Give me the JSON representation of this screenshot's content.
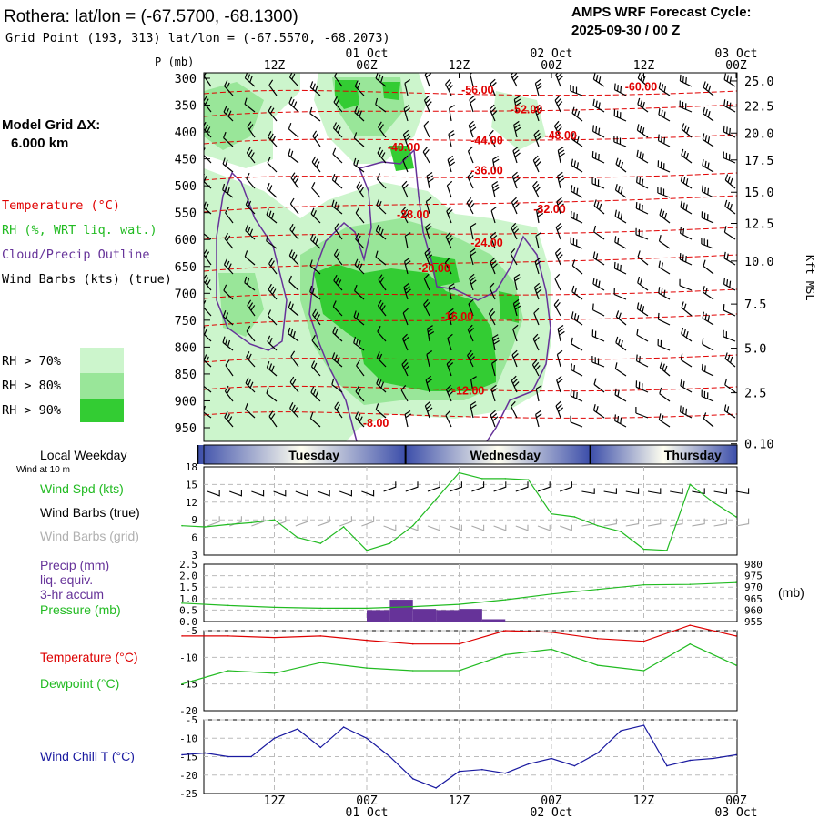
{
  "header": {
    "title": "Rothera:  lat/lon = (-67.5700, -68.1300)",
    "grid_point": "Grid Point (193, 313) lat/lon = (-67.5570, -68.2073)",
    "cycle_line1": "AMPS WRF Forecast Cycle:",
    "cycle_line2": "2025-09-30 / 00  Z"
  },
  "legend": {
    "model_grid": "Model Grid ΔX:",
    "model_grid_value": "6.000 km",
    "temperature": "Temperature (°C)",
    "rh": "RH (%, WRT liq. wat.)",
    "cloud": "Cloud/Precip Outline",
    "wind_barbs": "Wind Barbs (kts) (true)",
    "rh70": "RH > 70%",
    "rh80": "RH > 80%",
    "rh90": "RH > 90%",
    "colors": {
      "rh70": "#ccf5cc",
      "rh80": "#99e699",
      "rh90": "#33cc33",
      "temp": "#ff0000",
      "cloud": "#663399"
    }
  },
  "time_axis": {
    "top_labels": [
      {
        "t": 1,
        "line1": "",
        "line2": "12Z"
      },
      {
        "t": 2,
        "line1": "01 Oct",
        "line2": "00Z"
      },
      {
        "t": 3,
        "line1": "",
        "line2": "12Z"
      },
      {
        "t": 4,
        "line1": "02 Oct",
        "line2": "00Z"
      },
      {
        "t": 5,
        "line1": "",
        "line2": "12Z"
      },
      {
        "t": 6,
        "line1": "03 Oct",
        "line2": "00Z"
      }
    ],
    "bottom_labels": [
      {
        "t": 1,
        "line1": "12Z",
        "line2": ""
      },
      {
        "t": 2,
        "line1": "00Z",
        "line2": "01 Oct"
      },
      {
        "t": 3,
        "line1": "12Z",
        "line2": ""
      },
      {
        "t": 4,
        "line1": "00Z",
        "line2": "02 Oct"
      },
      {
        "t": 5,
        "line1": "12Z",
        "line2": ""
      },
      {
        "t": 6,
        "line1": "00Z",
        "line2": "03 Oct"
      }
    ]
  },
  "weekday": {
    "label": "Local Weekday",
    "wind_note": "Wind at 10 m",
    "days": [
      "Tuesday",
      "Wednesday",
      "Thursday"
    ],
    "day_centers_t": [
      1.43,
      3.5,
      5.53
    ],
    "day_boundaries_t": [
      0.17,
      2.42,
      4.42
    ]
  },
  "chart_data": [
    {
      "type": "contour-profile",
      "name": "cross-section",
      "y_axis": {
        "label": "P (mb)",
        "ticks": [
          300,
          350,
          400,
          450,
          500,
          550,
          600,
          650,
          700,
          750,
          800,
          850,
          900,
          950
        ]
      },
      "right_axis": {
        "label": "Kft MSL",
        "ticks": [
          "25.0",
          "22.5",
          "20.0",
          "17.5",
          "15.0",
          "12.5",
          "10.0",
          "7.5",
          "5.0",
          "2.5",
          "0.10"
        ],
        "tick_p": [
          305,
          352,
          402,
          452,
          512,
          570,
          640,
          720,
          802,
          885,
          980
        ]
      },
      "temperature_labels": [
        {
          "text": "-60.00",
          "t": 4.97,
          "p": 314
        },
        {
          "text": "-56.00",
          "t": 3.2,
          "p": 320
        },
        {
          "text": "-52.00",
          "t": 3.73,
          "p": 357
        },
        {
          "text": "-48.00",
          "t": 4.1,
          "p": 405
        },
        {
          "text": "-44.00",
          "t": 3.3,
          "p": 414
        },
        {
          "text": "-40.00",
          "t": 2.4,
          "p": 427
        },
        {
          "text": "-36.00",
          "t": 3.3,
          "p": 470
        },
        {
          "text": "-32.00",
          "t": 3.98,
          "p": 542
        },
        {
          "text": "-28.00",
          "t": 2.5,
          "p": 552
        },
        {
          "text": "-24.00",
          "t": 3.3,
          "p": 605
        },
        {
          "text": "-20.00",
          "t": 2.73,
          "p": 652
        },
        {
          "text": "-16.00",
          "t": 2.98,
          "p": 742
        },
        {
          "text": "-12.00",
          "t": 3.1,
          "p": 880
        },
        {
          "text": "-8.00",
          "t": 2.1,
          "p": 940
        }
      ]
    },
    {
      "type": "line",
      "name": "wind",
      "labels": {
        "speed": "Wind Spd (kts)",
        "true": "Wind Barbs (true)",
        "grid": "Wind Barbs (grid)"
      },
      "ylim": [
        3,
        18
      ],
      "yticks": [
        3,
        6,
        9,
        12,
        15,
        18
      ],
      "x": [
        0,
        0.25,
        0.5,
        0.75,
        1,
        1.25,
        1.5,
        1.75,
        2,
        2.25,
        2.5,
        2.75,
        3,
        3.25,
        3.5,
        3.75,
        4,
        4.25,
        4.5,
        4.75,
        5,
        5.25,
        5.5,
        5.75,
        6
      ],
      "series": [
        {
          "values": [
            8,
            7.8,
            8.2,
            8.5,
            9,
            6,
            5,
            7.8,
            3.8,
            5,
            8,
            12.5,
            17,
            16,
            16,
            15.8,
            10,
            9.5,
            8,
            7,
            4,
            3.8,
            15,
            12,
            9.5
          ]
        }
      ]
    },
    {
      "type": "bar+line",
      "name": "precip-pressure",
      "labels": {
        "precip": "Precip (mm)",
        "liq": "liq. equiv.",
        "accum": "3-hr accum",
        "pressure": "Pressure (mb)",
        "unit": "(mb)"
      },
      "ylim_left": [
        0,
        2.5
      ],
      "yticks_left": [
        "0.0",
        "0.5",
        "1.0",
        "1.5",
        "2.0",
        "2.5"
      ],
      "ylim_right": [
        955,
        980
      ],
      "yticks_right": [
        955,
        960,
        965,
        970,
        975,
        980
      ],
      "precip_bars": [
        {
          "t0": 2.0,
          "t1": 2.25,
          "v": 0.5
        },
        {
          "t0": 2.25,
          "t1": 2.5,
          "v": 0.95
        },
        {
          "t0": 2.5,
          "t1": 2.75,
          "v": 0.55
        },
        {
          "t0": 2.75,
          "t1": 3.0,
          "v": 0.5
        },
        {
          "t0": 3.0,
          "t1": 3.25,
          "v": 0.55
        },
        {
          "t0": 3.25,
          "t1": 3.5,
          "v": 0.1
        }
      ],
      "pressure_x": [
        0,
        0.5,
        1,
        1.5,
        2,
        2.5,
        3,
        3.5,
        4,
        4.5,
        5,
        5.5,
        6
      ],
      "pressure": [
        963,
        962,
        961.2,
        960.8,
        960.8,
        961.5,
        962.5,
        964.5,
        967,
        969,
        971,
        971.2,
        972
      ]
    },
    {
      "type": "line",
      "name": "temp-dewpoint",
      "labels": {
        "temp": "Temperature (°C)",
        "dew": "Dewpoint (°C)"
      },
      "ylim": [
        -20,
        -5
      ],
      "yticks": [
        -20,
        -15,
        -10,
        -5
      ],
      "x": [
        0,
        0.5,
        1,
        1.5,
        2,
        2.5,
        3,
        3.5,
        4,
        4.5,
        5,
        5.5,
        6
      ],
      "series": [
        {
          "values": [
            -6,
            -6,
            -6.3,
            -6,
            -6.8,
            -7.5,
            -7.5,
            -5,
            -5.3,
            -6.5,
            -7,
            -4,
            -6
          ]
        },
        {
          "values": [
            -15,
            -12.5,
            -13,
            -11,
            -12,
            -12.5,
            -12.5,
            -9.5,
            -8.5,
            -11.5,
            -12.5,
            -7.5,
            -11.5
          ]
        }
      ]
    },
    {
      "type": "line",
      "name": "wind-chill",
      "labels": {
        "wc": "Wind Chill T (°C)"
      },
      "ylim": [
        -25,
        -5
      ],
      "yticks": [
        -25,
        -20,
        -15,
        -10,
        -5
      ],
      "x": [
        0,
        0.25,
        0.5,
        0.75,
        1,
        1.25,
        1.5,
        1.75,
        2,
        2.25,
        2.5,
        2.75,
        3,
        3.25,
        3.5,
        3.75,
        4,
        4.25,
        4.5,
        4.75,
        5,
        5.25,
        5.5,
        5.75,
        6
      ],
      "series": [
        {
          "values": [
            -14.5,
            -14,
            -15,
            -15,
            -10,
            -7.5,
            -12.5,
            -7,
            -10,
            -15,
            -21,
            -23.5,
            -19,
            -18.5,
            -19.5,
            -17,
            -15.5,
            -17.5,
            -14,
            -8,
            -6.5,
            -17.5,
            -16,
            -15.5,
            -14.5
          ]
        }
      ]
    }
  ]
}
